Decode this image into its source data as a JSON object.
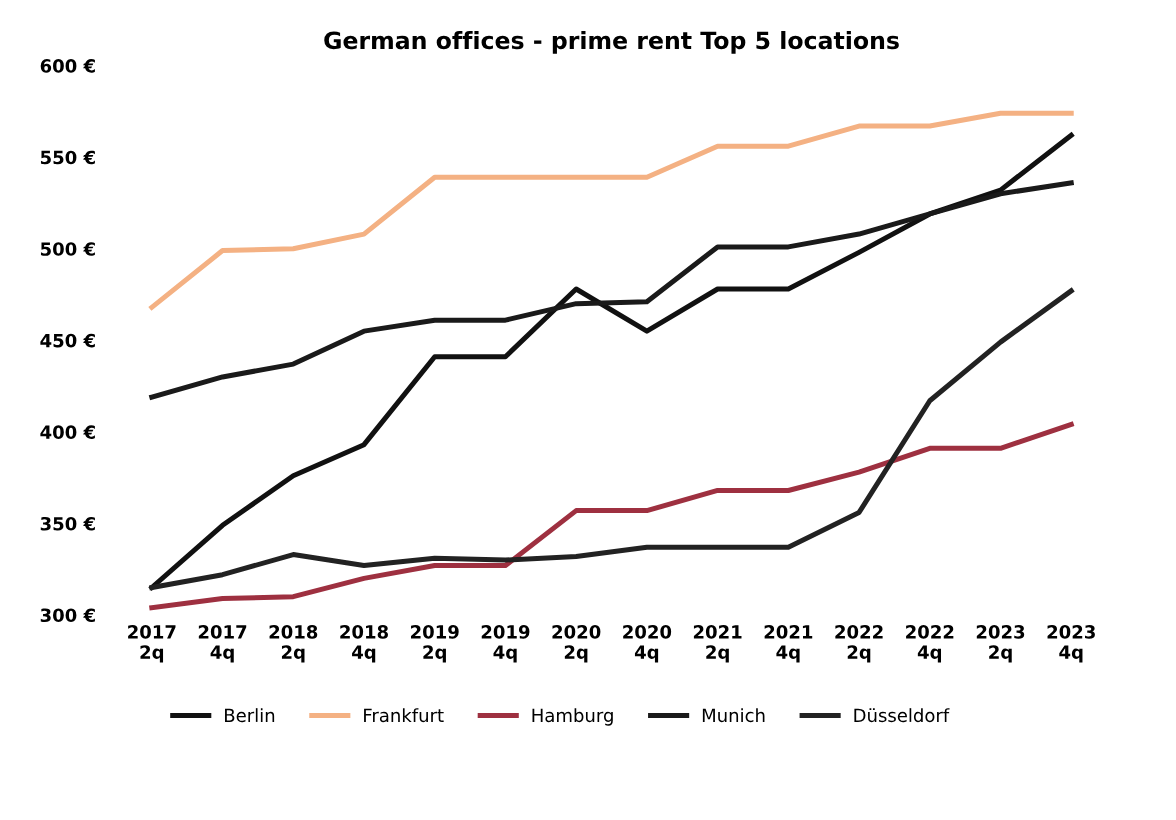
{
  "chart_data": {
    "type": "line",
    "title": "German offices - prime rent Top 5 locations",
    "categories": [
      "2017\n2q",
      "2017\n4q",
      "2018\n2q",
      "2018\n4q",
      "2019\n2q",
      "2019\n4q",
      "2020\n2q",
      "2020\n4q",
      "2021\n2q",
      "2021\n4q",
      "2022\n2q",
      "2022\n4q",
      "2023\n2q",
      "2023\n4q"
    ],
    "series": [
      {
        "name": "Berlin",
        "color": "#111111",
        "values": [
          315,
          349,
          376,
          393,
          441,
          441,
          478,
          455,
          478,
          478,
          498,
          519,
          532,
          562
        ]
      },
      {
        "name": "Frankfurt",
        "color": "#f4b183",
        "values": [
          468,
          499,
          500,
          508,
          539,
          539,
          539,
          539,
          556,
          556,
          567,
          567,
          574,
          574
        ]
      },
      {
        "name": "Hamburg",
        "color": "#9e3040",
        "values": [
          304,
          309,
          310,
          320,
          327,
          327,
          357,
          357,
          368,
          368,
          378,
          391,
          391,
          404
        ]
      },
      {
        "name": "Munich",
        "color": "#1a1a1a",
        "values": [
          419,
          430,
          437,
          455,
          461,
          461,
          470,
          471,
          501,
          501,
          508,
          519,
          530,
          536
        ]
      },
      {
        "name": "Düsseldorf",
        "color": "#222222",
        "values": [
          315,
          322,
          333,
          327,
          331,
          330,
          332,
          337,
          337,
          337,
          356,
          417,
          449,
          477
        ]
      }
    ],
    "ylim": [
      300,
      600
    ],
    "yticks": [
      {
        "value": 300,
        "label": "300 €"
      },
      {
        "value": 350,
        "label": "350 €"
      },
      {
        "value": 400,
        "label": "400 €"
      },
      {
        "value": 450,
        "label": "450 €"
      },
      {
        "value": 500,
        "label": "500 €"
      },
      {
        "value": 550,
        "label": "550 €"
      },
      {
        "value": 600,
        "label": "600 €"
      }
    ],
    "grid": false,
    "legend": "bottom",
    "marker": "none",
    "line_style": "solid"
  }
}
